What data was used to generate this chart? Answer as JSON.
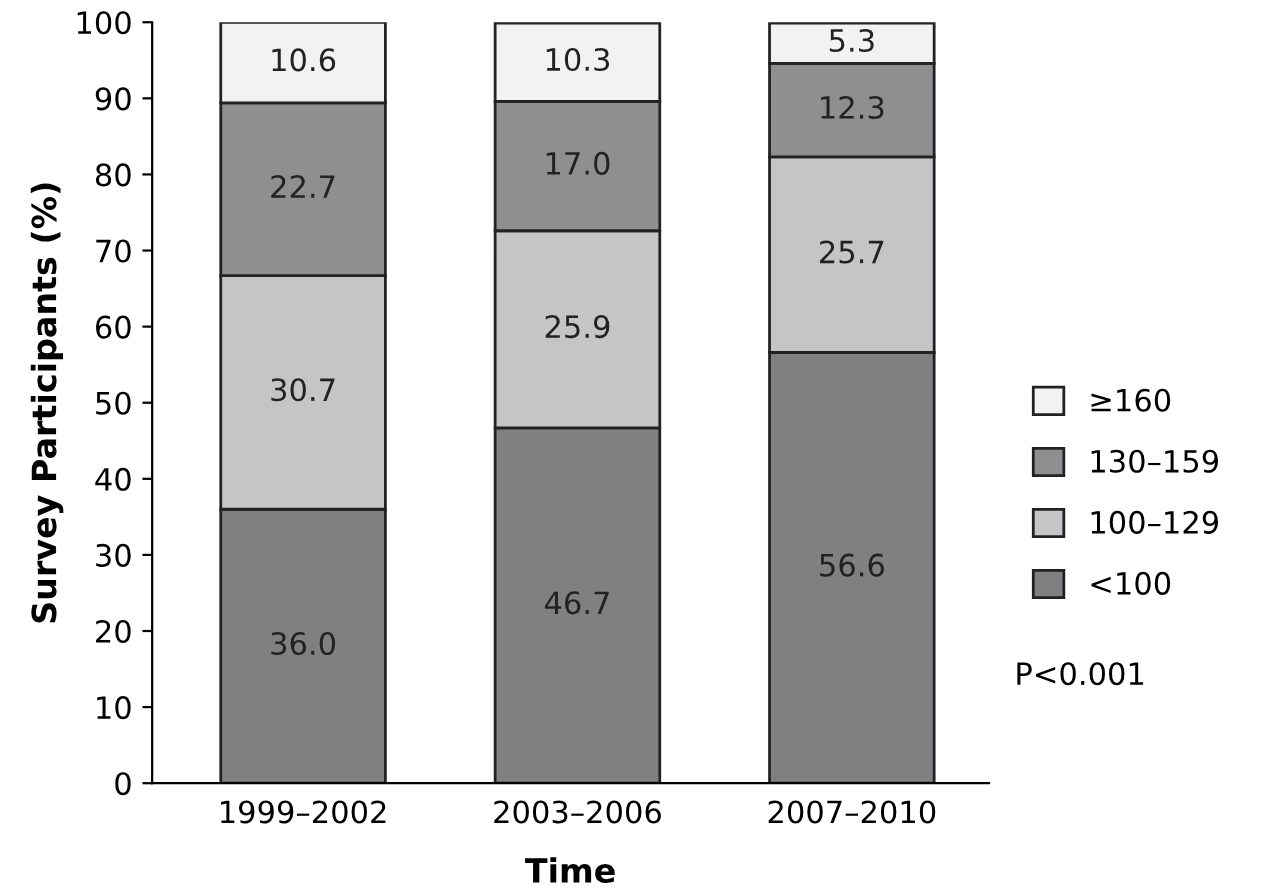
{
  "chart_data": {
    "type": "bar",
    "stacked": true,
    "xlabel": "Time",
    "ylabel": "Survey Participants (%)",
    "categories": [
      "1999–2002",
      "2003–2006",
      "2007–2010"
    ],
    "series": [
      {
        "name": "<100",
        "color": "#808082",
        "values": [
          36.0,
          46.7,
          56.6
        ],
        "value_labels": [
          "36.0",
          "46.7",
          "56.6"
        ]
      },
      {
        "name": "100–129",
        "color": "#c5c5c8",
        "values": [
          30.7,
          25.9,
          25.7
        ],
        "value_labels": [
          "30.7",
          "25.9",
          "25.7"
        ]
      },
      {
        "name": "130–159",
        "color": "#8f8f92",
        "values": [
          22.7,
          17.0,
          12.3
        ],
        "value_labels": [
          "22.7",
          "17.0",
          "12.3"
        ]
      },
      {
        "name": "≥160",
        "color": "#f2f2f2",
        "values": [
          10.6,
          10.3,
          5.3
        ],
        "value_labels": [
          "10.6",
          "10.3",
          "5.3"
        ]
      }
    ],
    "ylim": [
      0,
      100
    ],
    "yticks": [
      0,
      10,
      20,
      30,
      40,
      50,
      60,
      70,
      80,
      90,
      100
    ],
    "grid": false,
    "legend": "right",
    "annotations": [
      "P<0.001"
    ]
  }
}
